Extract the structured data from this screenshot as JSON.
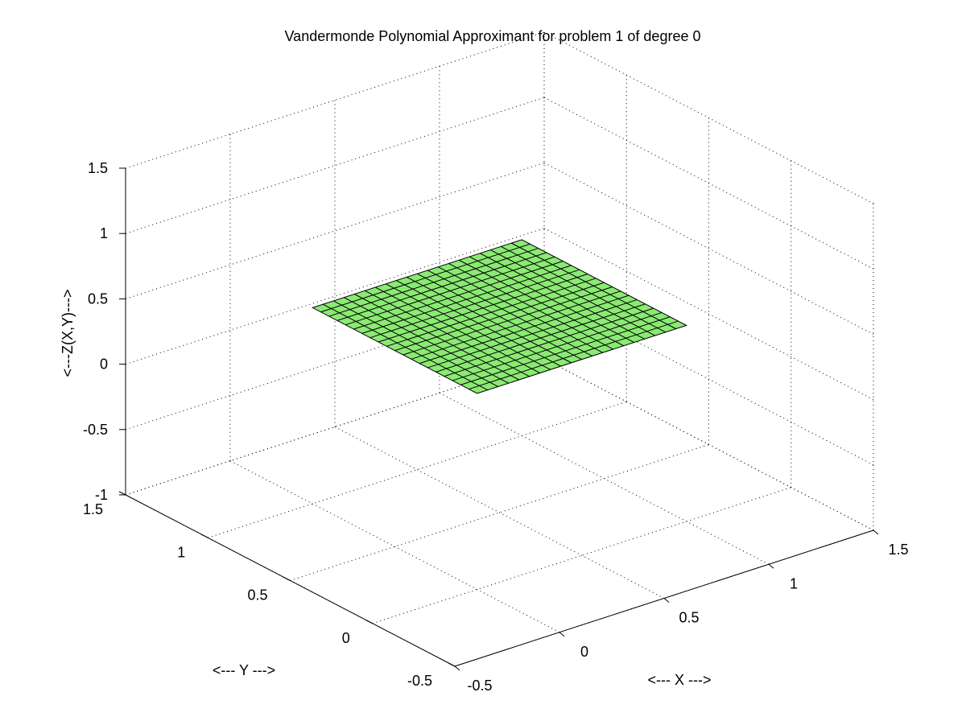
{
  "chart_data": {
    "type": "surface",
    "title": "Vandermonde Polynomial Approximant for problem 1 of degree 0",
    "xlabel": "<--- X --->",
    "ylabel": "<--- Y --->",
    "zlabel": "<---Z(X,Y)--->",
    "xlim": [
      -0.5,
      1.5
    ],
    "ylim": [
      -0.5,
      1.5
    ],
    "zlim": [
      -1,
      1.5
    ],
    "x_ticks": [
      -0.5,
      0,
      0.5,
      1,
      1.5
    ],
    "y_ticks": [
      -0.5,
      0,
      0.5,
      1,
      1.5
    ],
    "z_ticks": [
      -1,
      -0.5,
      0,
      0.5,
      1,
      1.5
    ],
    "x_tick_labels": [
      "-0.5",
      "0",
      "0.5",
      "1",
      "1.5"
    ],
    "y_tick_labels": [
      "-0.5",
      "0",
      "0.5",
      "1",
      "1.5"
    ],
    "z_tick_labels": [
      "-1",
      "-0.5",
      "0",
      "0.5",
      "1",
      "1.5"
    ],
    "grid": true,
    "surface": {
      "x_range": [
        0,
        1
      ],
      "y_range": [
        0,
        1
      ],
      "mesh_divisions": 20,
      "z_value": 0.5,
      "face_color": "#8aea73",
      "edge_color": "#000000"
    }
  }
}
